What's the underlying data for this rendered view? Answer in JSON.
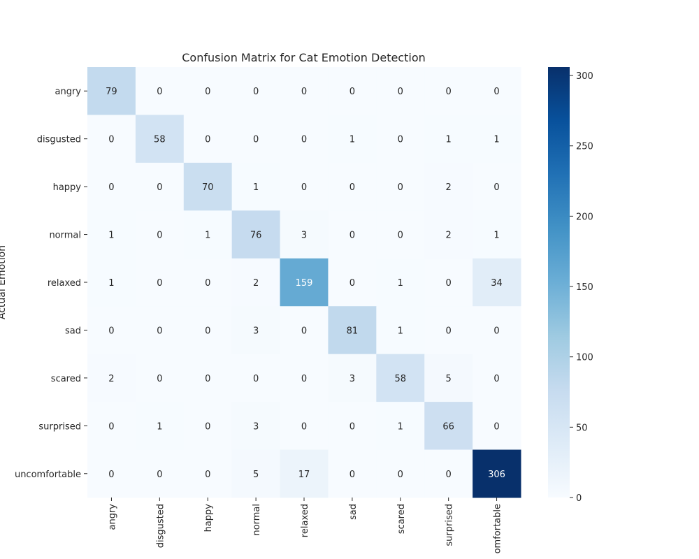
{
  "chart_data": {
    "type": "heatmap",
    "title": "Confusion Matrix for Cat Emotion Detection",
    "ylabel": "Actual Emotion",
    "xlabel": "",
    "row_labels": [
      "angry",
      "disgusted",
      "happy",
      "normal",
      "relaxed",
      "sad",
      "scared",
      "surprised",
      "uncomfortable"
    ],
    "col_labels": [
      "angry",
      "disgusted",
      "happy",
      "normal",
      "relaxed",
      "sad",
      "scared",
      "surprised",
      "uncomfortable"
    ],
    "col_labels_visible": [
      "angry",
      "disgusted",
      "happy",
      "normal",
      "relaxed",
      "sad",
      "scared",
      "surprised",
      "omfortable"
    ],
    "matrix": [
      [
        79,
        0,
        0,
        0,
        0,
        0,
        0,
        0,
        0
      ],
      [
        0,
        58,
        0,
        0,
        0,
        1,
        0,
        1,
        1
      ],
      [
        0,
        0,
        70,
        1,
        0,
        0,
        0,
        2,
        0
      ],
      [
        1,
        0,
        1,
        76,
        3,
        0,
        0,
        2,
        1
      ],
      [
        1,
        0,
        0,
        2,
        159,
        0,
        1,
        0,
        34
      ],
      [
        0,
        0,
        0,
        3,
        0,
        81,
        1,
        0,
        0
      ],
      [
        2,
        0,
        0,
        0,
        0,
        3,
        58,
        5,
        0
      ],
      [
        0,
        1,
        0,
        3,
        0,
        0,
        1,
        66,
        0
      ],
      [
        0,
        0,
        0,
        5,
        17,
        0,
        0,
        0,
        306
      ]
    ],
    "colorbar": {
      "min": 0,
      "max": 306,
      "ticks": [
        0,
        50,
        100,
        150,
        200,
        250,
        300
      ],
      "colormap": [
        "#f7fbff",
        "#deebf7",
        "#c6dbef",
        "#9ecae1",
        "#6baed6",
        "#4292c6",
        "#2171b5",
        "#08519c",
        "#08306b"
      ]
    }
  }
}
